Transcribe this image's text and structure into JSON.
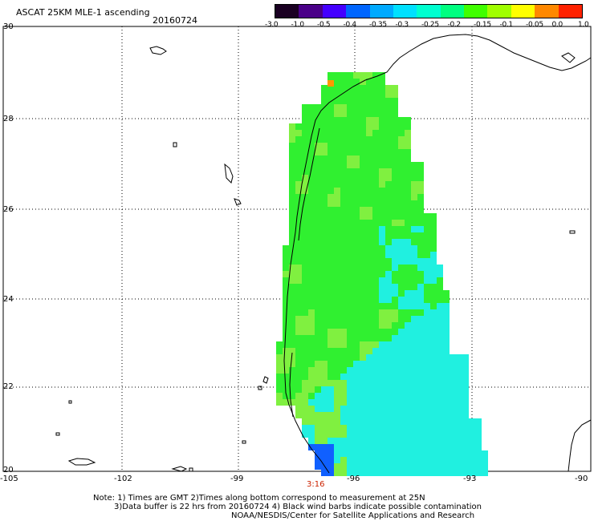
{
  "header": {
    "title": "ASCAT 25KM MLE-1 ascending",
    "date": "20160724"
  },
  "colorbar": {
    "labels": [
      "-3.0",
      "-1.0",
      "-0.5",
      "-0.4",
      "-0.35",
      "-0.3",
      "-0.25",
      "-0.2",
      "-0.15",
      "-0.1",
      "-0.05",
      "0.0",
      "1.0"
    ],
    "colors": [
      "#1a0022",
      "#4a0088",
      "#4400ff",
      "#0066ff",
      "#00aaff",
      "#00e0ff",
      "#00ffd0",
      "#00ff80",
      "#40ff00",
      "#a0ff00",
      "#ffff00",
      "#ff8800",
      "#ff2200"
    ]
  },
  "axes": {
    "lat_labels": [
      "30",
      "28",
      "26",
      "24",
      "22",
      "20"
    ],
    "lon_labels": [
      "-105",
      "-102",
      "-99",
      "-96",
      "-93",
      "-90"
    ]
  },
  "timestamp": "3:16",
  "notes": {
    "line1": "Note: 1) Times are GMT 2)Times along bottom correspond to measurement at 25N",
    "line2": "3)Data buffer is 22 hrs from 20160724 4) Black wind barbs indicate possible contamination",
    "line3": "NOAA/NESDIS/Center for Satellite Applications and Research"
  },
  "map_region": "Gulf of Mexico",
  "data_colors": {
    "dominant_green": "#30f030",
    "light_green": "#80f040",
    "cyan": "#20f0e0",
    "blue_patch": "#1060ff"
  }
}
